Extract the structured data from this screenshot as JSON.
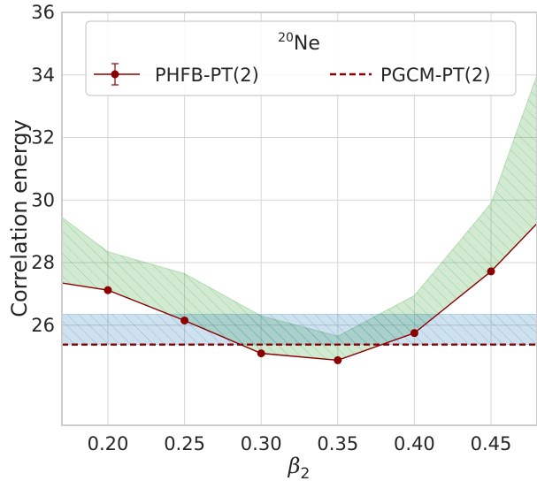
{
  "chart_data": {
    "type": "line",
    "legend_title_sup": "20",
    "legend_title_main": "Ne",
    "xlabel_symbol": "β",
    "xlabel_sub": "2",
    "ylabel": "Correlation energy",
    "xlim": [
      0.17,
      0.48
    ],
    "ylim": [
      22.8,
      36
    ],
    "x_ticks": [
      "0.20",
      "0.25",
      "0.30",
      "0.35",
      "0.40",
      "0.45"
    ],
    "y_ticks": [
      "26",
      "28",
      "30",
      "32",
      "34",
      "36"
    ],
    "grid": true,
    "legend_position": "top",
    "series": [
      {
        "name": "PHFB-PT(2)",
        "color": "#8b0000",
        "x": [
          0.17,
          0.2,
          0.25,
          0.3,
          0.35,
          0.4,
          0.45,
          0.48
        ],
        "y": [
          27.35,
          27.12,
          26.15,
          25.1,
          24.88,
          25.75,
          27.72,
          29.25
        ]
      },
      {
        "name": "PGCM-PT(2)",
        "color": "#8b0000",
        "style": "dashed",
        "y_constant": 25.38
      }
    ],
    "bands": [
      {
        "color": "#2ca02c",
        "x": [
          0.17,
          0.2,
          0.25,
          0.3,
          0.35,
          0.4,
          0.45,
          0.48
        ],
        "lower": [
          27.35,
          27.12,
          26.15,
          25.1,
          24.88,
          25.75,
          27.72,
          29.25
        ],
        "upper": [
          29.45,
          28.35,
          27.65,
          26.3,
          25.65,
          26.95,
          29.9,
          34.0
        ]
      },
      {
        "color": "#1f77b4",
        "lower_constant": 25.38,
        "upper_constant": 26.35
      }
    ]
  }
}
